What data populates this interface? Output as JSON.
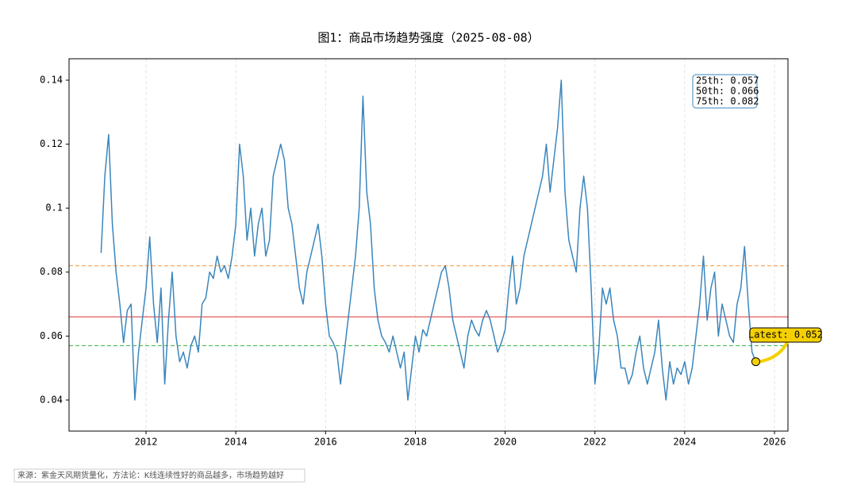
{
  "chart_data": {
    "type": "line",
    "title": "图1：商品市场趋势强度（2025-08-08）",
    "footer": "来源：紫金天风期货量化，方法论：K线连续性好的商品越多，市场趋势越好",
    "color": "#3a86bd",
    "xlim": [
      2010.285,
      2026.3
    ],
    "ylim": [
      0.0303,
      0.1467
    ],
    "xticks": [
      2012,
      2014,
      2016,
      2018,
      2020,
      2022,
      2024,
      2026
    ],
    "yticks": [
      0.04,
      0.06,
      0.08,
      0.1,
      0.12,
      0.14
    ],
    "grid": true,
    "x": [
      2011,
      2011.083,
      2011.167,
      2011.25,
      2011.333,
      2011.417,
      2011.5,
      2011.583,
      2011.667,
      2011.75,
      2011.833,
      2011.917,
      2012,
      2012.083,
      2012.167,
      2012.25,
      2012.333,
      2012.417,
      2012.5,
      2012.583,
      2012.667,
      2012.75,
      2012.833,
      2012.917,
      2013,
      2013.083,
      2013.167,
      2013.25,
      2013.333,
      2013.417,
      2013.5,
      2013.583,
      2013.667,
      2013.75,
      2013.833,
      2013.917,
      2014,
      2014.083,
      2014.167,
      2014.25,
      2014.333,
      2014.417,
      2014.5,
      2014.583,
      2014.667,
      2014.75,
      2014.833,
      2014.917,
      2015,
      2015.083,
      2015.167,
      2015.25,
      2015.333,
      2015.417,
      2015.5,
      2015.583,
      2015.667,
      2015.75,
      2015.833,
      2015.917,
      2016,
      2016.083,
      2016.167,
      2016.25,
      2016.333,
      2016.417,
      2016.5,
      2016.583,
      2016.667,
      2016.75,
      2016.833,
      2016.917,
      2017,
      2017.083,
      2017.167,
      2017.25,
      2017.333,
      2017.417,
      2017.5,
      2017.583,
      2017.667,
      2017.75,
      2017.833,
      2017.917,
      2018,
      2018.083,
      2018.167,
      2018.25,
      2018.333,
      2018.417,
      2018.5,
      2018.583,
      2018.667,
      2018.75,
      2018.833,
      2018.917,
      2019,
      2019.083,
      2019.167,
      2019.25,
      2019.333,
      2019.417,
      2019.5,
      2019.583,
      2019.667,
      2019.75,
      2019.833,
      2019.917,
      2020,
      2020.083,
      2020.167,
      2020.25,
      2020.333,
      2020.417,
      2020.5,
      2020.583,
      2020.667,
      2020.75,
      2020.833,
      2020.917,
      2021,
      2021.083,
      2021.167,
      2021.25,
      2021.333,
      2021.417,
      2021.5,
      2021.583,
      2021.667,
      2021.75,
      2021.833,
      2021.917,
      2022,
      2022.083,
      2022.167,
      2022.25,
      2022.333,
      2022.417,
      2022.5,
      2022.583,
      2022.667,
      2022.75,
      2022.833,
      2022.917,
      2023,
      2023.083,
      2023.167,
      2023.25,
      2023.333,
      2023.417,
      2023.5,
      2023.583,
      2023.667,
      2023.75,
      2023.833,
      2023.917,
      2024,
      2024.083,
      2024.167,
      2024.25,
      2024.333,
      2024.417,
      2024.5,
      2024.583,
      2024.667,
      2024.75,
      2024.833,
      2024.917,
      2025,
      2025.083,
      2025.167,
      2025.25,
      2025.333,
      2025.417,
      2025.5,
      2025.583
    ],
    "values": [
      0.086,
      0.11,
      0.123,
      0.095,
      0.08,
      0.07,
      0.058,
      0.068,
      0.07,
      0.04,
      0.055,
      0.065,
      0.075,
      0.091,
      0.07,
      0.058,
      0.075,
      0.045,
      0.065,
      0.08,
      0.06,
      0.052,
      0.055,
      0.05,
      0.057,
      0.06,
      0.055,
      0.07,
      0.072,
      0.08,
      0.078,
      0.085,
      0.08,
      0.082,
      0.078,
      0.085,
      0.095,
      0.12,
      0.11,
      0.09,
      0.1,
      0.085,
      0.095,
      0.1,
      0.085,
      0.09,
      0.11,
      0.115,
      0.12,
      0.115,
      0.1,
      0.095,
      0.085,
      0.075,
      0.07,
      0.08,
      0.085,
      0.09,
      0.095,
      0.085,
      0.07,
      0.06,
      0.058,
      0.055,
      0.045,
      0.055,
      0.065,
      0.075,
      0.085,
      0.1,
      0.135,
      0.105,
      0.095,
      0.075,
      0.065,
      0.06,
      0.058,
      0.055,
      0.06,
      0.055,
      0.05,
      0.055,
      0.04,
      0.05,
      0.06,
      0.055,
      0.062,
      0.06,
      0.065,
      0.07,
      0.075,
      0.08,
      0.082,
      0.075,
      0.065,
      0.06,
      0.055,
      0.05,
      0.06,
      0.065,
      0.062,
      0.06,
      0.065,
      0.068,
      0.065,
      0.06,
      0.055,
      0.058,
      0.062,
      0.075,
      0.085,
      0.07,
      0.075,
      0.085,
      0.09,
      0.095,
      0.1,
      0.105,
      0.11,
      0.12,
      0.105,
      0.115,
      0.125,
      0.14,
      0.105,
      0.09,
      0.085,
      0.08,
      0.1,
      0.11,
      0.1,
      0.075,
      0.045,
      0.055,
      0.075,
      0.07,
      0.075,
      0.065,
      0.06,
      0.05,
      0.05,
      0.045,
      0.048,
      0.055,
      0.06,
      0.05,
      0.045,
      0.05,
      0.055,
      0.065,
      0.05,
      0.04,
      0.052,
      0.045,
      0.05,
      0.048,
      0.052,
      0.045,
      0.05,
      0.06,
      0.07,
      0.085,
      0.065,
      0.075,
      0.08,
      0.06,
      0.07,
      0.065,
      0.06,
      0.058,
      0.07,
      0.075,
      0.088,
      0.07,
      0.055,
      0.052
    ],
    "hlines": [
      {
        "value": 0.082,
        "color": "#f5a35c",
        "style": "dashed"
      },
      {
        "value": 0.066,
        "color": "#e05a5a",
        "style": "solid"
      },
      {
        "value": 0.057,
        "color": "#4cb84c",
        "style": "dashed"
      }
    ],
    "percentile_box": [
      "25th: 0.057",
      "50th: 0.066",
      "75th: 0.082"
    ],
    "latest_label": "Latest: 0.052"
  }
}
